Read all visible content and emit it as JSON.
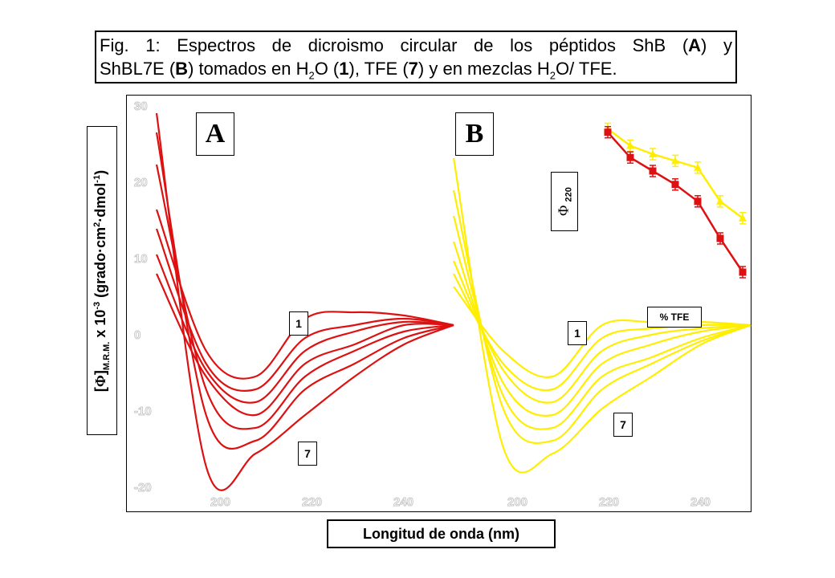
{
  "caption": {
    "line1_a": "Fig. 1: Espectros de dicroismo circular de los péptidos ShB (",
    "line1_b": "A",
    "line1_c": ") y",
    "line2_a": "ShBL7E (",
    "line2_b": "B",
    "line2_c": ") tomados en H",
    "line2_sub1": "2",
    "line2_d": "O (",
    "line2_e": "1",
    "line2_f": "), TFE (",
    "line2_g": "7",
    "line2_h": ") y en mezclas H",
    "line2_sub2": "2",
    "line2_i": "O/ TFE."
  },
  "axes": {
    "y_label_open": "[",
    "y_label_phi": "Φ",
    "y_label_close": "]",
    "y_label_sub": "M.R.M.",
    "y_label_mid": " x 10",
    "y_label_sup1": "-3",
    "y_label_units": " (grado·cm",
    "y_label_sup2": "2",
    "y_label_units2": "·dmol",
    "y_label_sup3": "-1",
    "y_label_end": ")",
    "x_label": "Longitud de onda (nm)",
    "y_ticks_faint": [
      "30",
      "20",
      "10",
      "0",
      "-10",
      "-20"
    ],
    "x_ticks_faint_A": [
      "200",
      "220",
      "240"
    ],
    "x_ticks_faint_B": [
      "200",
      "220",
      "240"
    ]
  },
  "panels": {
    "A": {
      "label": "A",
      "curve_first": "1",
      "curve_last": "7",
      "color": "#dd1111"
    },
    "B": {
      "label": "B",
      "curve_first": "1",
      "curve_last": "7",
      "color": "#ffee00"
    }
  },
  "inset": {
    "y_label_phi": "Φ",
    "y_label_sub": "220",
    "x_label": "% TFE"
  },
  "chart_data": [
    {
      "type": "line",
      "title": "A",
      "series_color": "#dd1111",
      "x": [
        190,
        200,
        210,
        220,
        230,
        240,
        250
      ],
      "series": [
        {
          "values": [
            18,
            -4,
            -8,
            1,
            2,
            1.5,
            0
          ]
        },
        {
          "values": [
            15,
            -6,
            -10,
            -2,
            0,
            1,
            0
          ]
        },
        {
          "values": [
            11,
            -7,
            -12,
            -4,
            -1,
            0.5,
            0
          ]
        },
        {
          "values": [
            8,
            -8,
            -14,
            -6,
            -3,
            0,
            0
          ]
        },
        {
          "values": [
            25,
            -10,
            -16,
            -8,
            -4,
            -1,
            0
          ]
        },
        {
          "values": [
            30,
            -14,
            -18,
            -10,
            -6,
            -2,
            0
          ]
        },
        {
          "values": [
            33,
            -22,
            -20,
            -14,
            -8,
            -3,
            0
          ]
        }
      ],
      "ylim": [
        -25,
        35
      ]
    },
    {
      "type": "line",
      "title": "B",
      "series_color": "#ffee00",
      "x": [
        190,
        200,
        210,
        220,
        230,
        240,
        250
      ],
      "series": [
        {
          "values": [
            6,
            -4,
            -8,
            0,
            0.5,
            0.5,
            0
          ]
        },
        {
          "values": [
            8,
            -6,
            -10,
            -2,
            -0.5,
            0,
            0
          ]
        },
        {
          "values": [
            10,
            -7,
            -12,
            -4,
            -1.5,
            -0.5,
            0
          ]
        },
        {
          "values": [
            13,
            -9,
            -14,
            -6,
            -3,
            -1,
            0
          ]
        },
        {
          "values": [
            17,
            -11,
            -16,
            -8,
            -5,
            -2,
            0
          ]
        },
        {
          "values": [
            21,
            -13,
            -18,
            -10,
            -6,
            -2.5,
            0
          ]
        },
        {
          "values": [
            26,
            -19,
            -20,
            -13,
            -8,
            -3,
            0
          ]
        }
      ],
      "ylim": [
        -25,
        35
      ]
    },
    {
      "type": "line",
      "title": "inset",
      "x": [
        0,
        1,
        2,
        3,
        4,
        5,
        6
      ],
      "series": [
        {
          "color": "#ffee00",
          "values": [
            0.95,
            0.85,
            0.8,
            0.76,
            0.72,
            0.52,
            0.42
          ]
        },
        {
          "color": "#dd1111",
          "values": [
            0.93,
            0.78,
            0.7,
            0.62,
            0.52,
            0.3,
            0.1
          ]
        }
      ],
      "ylim": [
        0,
        1
      ]
    }
  ]
}
